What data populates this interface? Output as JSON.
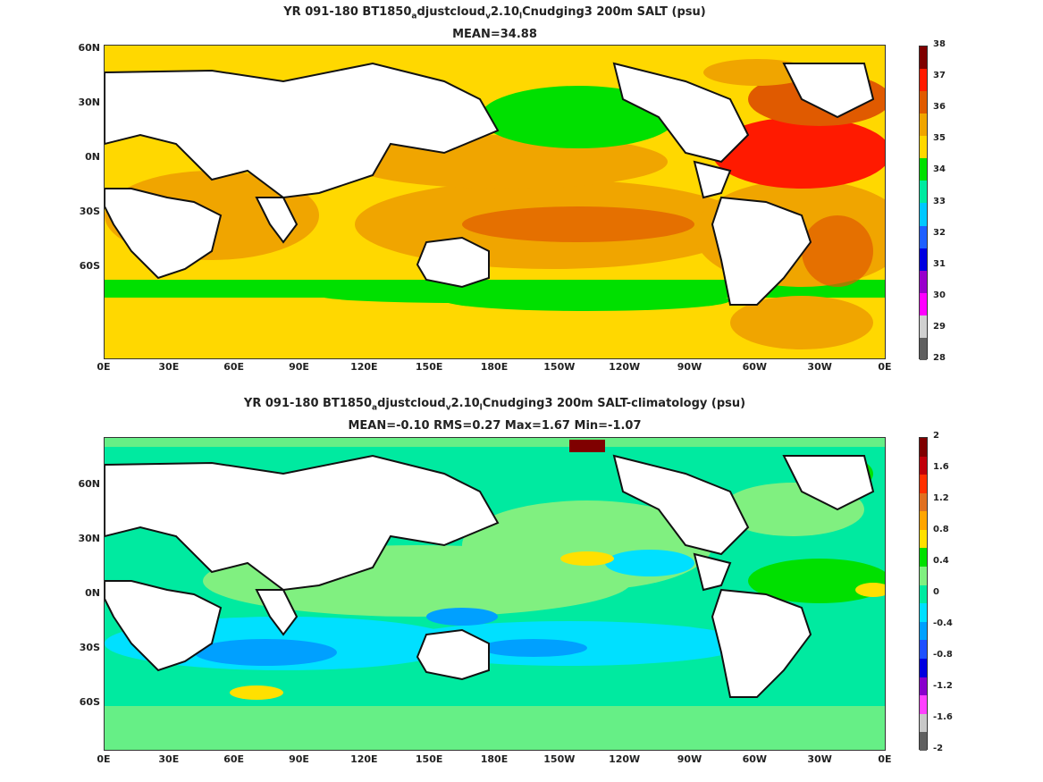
{
  "panels": [
    {
      "title_pre": "YR 091-180 BT1850",
      "title_sub1": "a",
      "title_mid": "djustcloud",
      "title_sub2": "v",
      "title_mid2": "2.10",
      "title_sub3": "l",
      "title_post": "Cnudging3 200m SALT (psu)",
      "stats": "MEAN=34.88",
      "colorbar_ticks": [
        "38",
        "37",
        "36",
        "35",
        "34",
        "33",
        "32",
        "31",
        "30",
        "29",
        "28"
      ],
      "colorbar_colors": [
        "#7f0000",
        "#ff1a00",
        "#e05a00",
        "#f0a500",
        "#ffd800",
        "#00e000",
        "#00eaa0",
        "#00c8ff",
        "#1e5fff",
        "#0000e0",
        "#9900cc",
        "#ff00ff",
        "#d0d0d0",
        "#606060"
      ]
    },
    {
      "title_pre": "YR 091-180 BT1850",
      "title_sub1": "a",
      "title_mid": "djustcloud",
      "title_sub2": "v",
      "title_mid2": "2.10",
      "title_sub3": "l",
      "title_post": "Cnudging3 200m SALT-climatology (psu)",
      "stats": "MEAN=-0.10   RMS=0.27   Max=1.67   Min=-1.07",
      "colorbar_ticks": [
        "2",
        "1.6",
        "1.2",
        "0.8",
        "0.4",
        "0",
        "-0.4",
        "-0.8",
        "-1.2",
        "-1.6",
        "-2"
      ],
      "colorbar_colors": [
        "#7f0000",
        "#c0000a",
        "#ff3000",
        "#e07020",
        "#ffa500",
        "#ffe000",
        "#00e000",
        "#80f080",
        "#00eaa0",
        "#00e0ff",
        "#00a0ff",
        "#1e50ff",
        "#0000e0",
        "#8800cc",
        "#ff40ff",
        "#c8c8c8",
        "#606060"
      ]
    }
  ],
  "lat_labels": [
    "60N",
    "30N",
    "0N",
    "30S",
    "60S"
  ],
  "lon_labels": [
    "0E",
    "30E",
    "60E",
    "90E",
    "120E",
    "150E",
    "180E",
    "150W",
    "120W",
    "90W",
    "60W",
    "30W",
    "0E"
  ]
}
